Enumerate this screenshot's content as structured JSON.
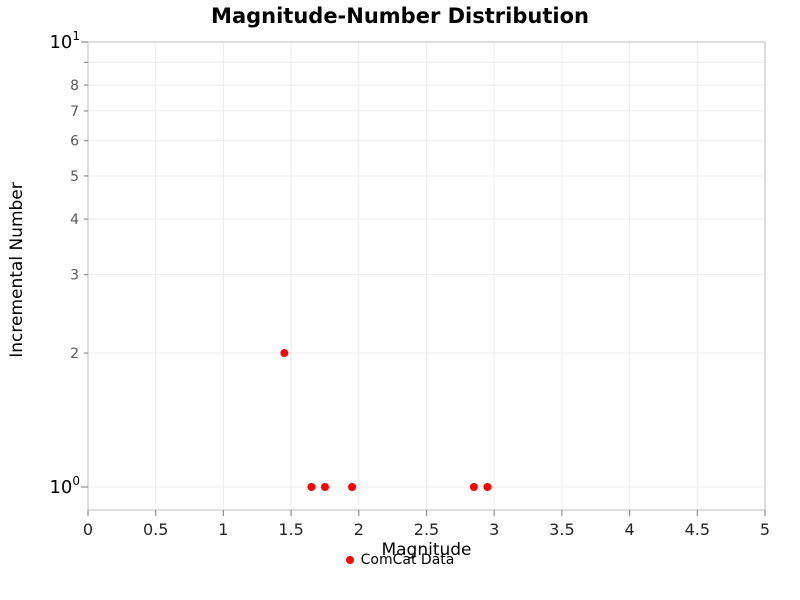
{
  "chart_data": {
    "type": "scatter",
    "title": "Magnitude-Number Distribution",
    "xlabel": "Magnitude",
    "ylabel": "Incremental Number",
    "series_name": "ComCat Data",
    "marker_color": "#ff0000",
    "x": [
      1.45,
      1.65,
      1.75,
      1.95,
      2.85,
      2.95
    ],
    "y": [
      2,
      1,
      1,
      1,
      1,
      1
    ],
    "xlim": [
      0,
      5
    ],
    "ylim": [
      1,
      10
    ],
    "yscale": "log",
    "x_ticks": [
      0,
      0.5,
      1,
      1.5,
      2,
      2.5,
      3,
      3.5,
      4,
      4.5,
      5
    ],
    "x_tick_labels": [
      "0",
      "0.5",
      "1",
      "1.5",
      "2",
      "2.5",
      "3",
      "3.5",
      "4",
      "4.5",
      "5"
    ],
    "y_minor_tick_labels": [
      "2",
      "3",
      "4",
      "5",
      "6",
      "7",
      "8"
    ],
    "y_major_tick_labels": [
      {
        "value": 1,
        "base": "10",
        "exponent": "0"
      },
      {
        "value": 10,
        "base": "10",
        "exponent": "1"
      }
    ],
    "grid": true,
    "legend_position": "bottom-center"
  }
}
